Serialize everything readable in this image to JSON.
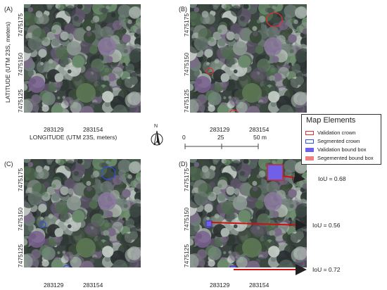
{
  "panels": [
    {
      "letter": "(A)"
    },
    {
      "letter": "(B)"
    },
    {
      "letter": "(C)"
    },
    {
      "letter": "(D)"
    }
  ],
  "axes": {
    "y_ticks": [
      "7475175",
      "7475150",
      "7475125"
    ],
    "x_ticks": [
      "283129",
      "283154"
    ],
    "y_title": "LATITUDE (UTM 23S, meters)",
    "x_title": "LONGITUDE (UTM 23S, meters)"
  },
  "north": {
    "label": "N"
  },
  "scalebar": {
    "labels": [
      "0",
      "25",
      "50 m"
    ]
  },
  "legend": {
    "title": "Map Elements",
    "items": [
      {
        "label": "Validation crown",
        "fill": "#ffffff",
        "stroke": "#e03030"
      },
      {
        "label": "Segmented crown",
        "fill": "#ffffff",
        "stroke": "#3050e0"
      },
      {
        "label": "Validation bound box",
        "fill": "#7060e8",
        "stroke": "#5040c0"
      },
      {
        "label": "Segemented bound box",
        "fill": "#f08080",
        "stroke": "#e06060"
      }
    ]
  },
  "iou": [
    {
      "label": "IoU = 0.68"
    },
    {
      "label": "IoU = 0.56"
    },
    {
      "label": "IoU = 0.72"
    }
  ],
  "colors": {
    "validation": "#e03030",
    "segmented": "#3050e0",
    "arrow": "#cc1111",
    "bbox": "#7060e8"
  }
}
